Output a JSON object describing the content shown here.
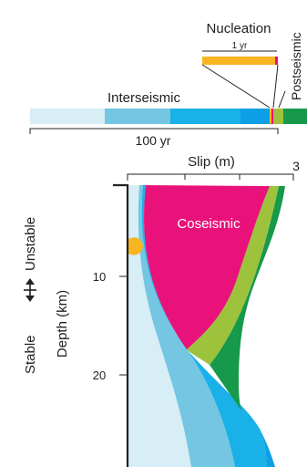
{
  "timeline": {
    "nucleation_label": "Nucleation",
    "nucleation_scale_label": "1 yr",
    "postseismic_label": "Postseismic",
    "interseismic_label": "Interseismic",
    "scale_label": "100 yr"
  },
  "profile": {
    "slip_axis_title": "Slip (m)",
    "slip_axis_max_label": "3",
    "depth_axis_title": "Depth (km)",
    "depth_tick_10": "10",
    "depth_tick_20": "20",
    "stability_stable": "Stable",
    "stability_unstable": "Unstable",
    "coseismic_label": "Coseismic"
  },
  "colors": {
    "interseismic_1": "#d8eef6",
    "interseismic_2": "#74c6e2",
    "interseismic_3": "#1ab0e8",
    "interseismic_4": "#0d9fe6",
    "coseismic": "#e8127a",
    "nucleation": "#f7b51f",
    "postseismic_1": "#9dc23c",
    "postseismic_2": "#16994a"
  },
  "icons": {
    "stability_arrow": "double-headed-arrow-icon"
  }
}
